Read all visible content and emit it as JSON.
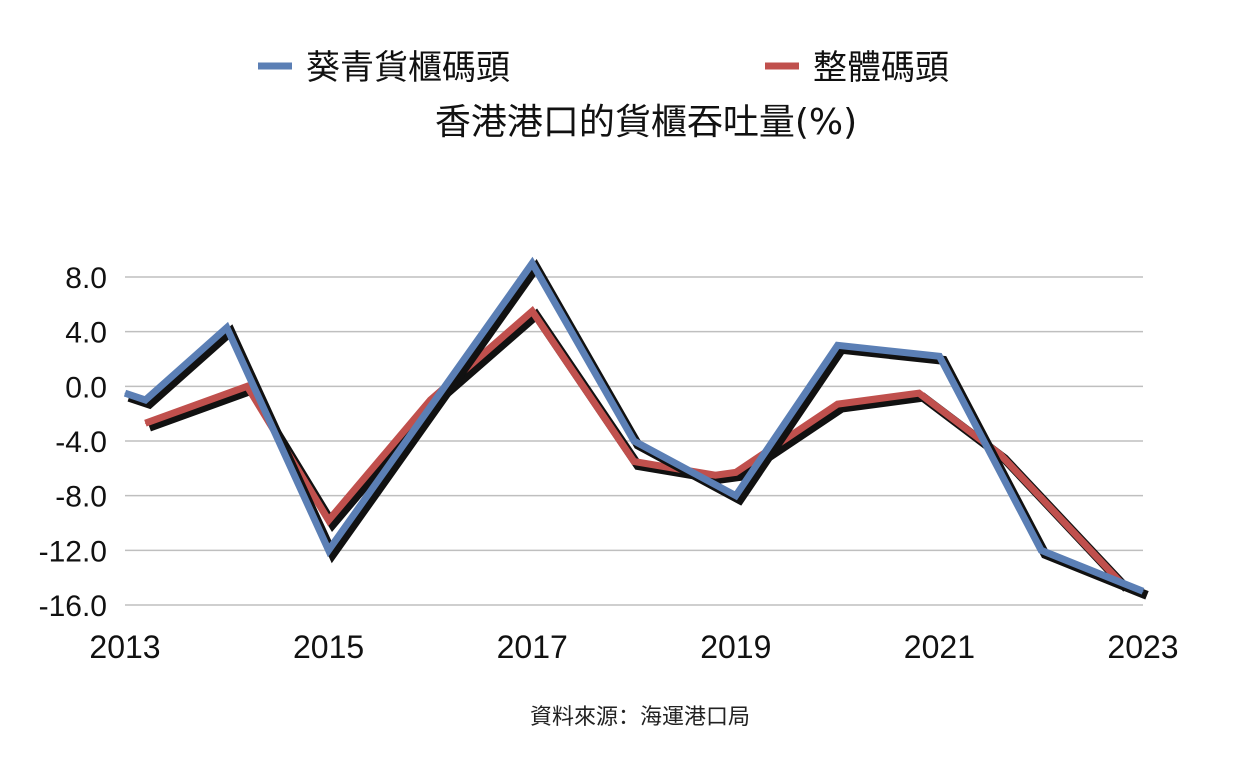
{
  "chart_data": {
    "type": "line",
    "title": "香港港口的貨櫃吞吐量(%)",
    "source": "資料來源：海運港口局",
    "x": [
      2013.0,
      2013.2,
      2014.0,
      2014.2,
      2015.0,
      2016.0,
      2017.0,
      2018.0,
      2018.8,
      2019.0,
      2020.0,
      2020.8,
      2021.0,
      2021.6,
      2022.0,
      2022.8,
      2023.0
    ],
    "x_ticks": [
      "2013",
      "2015",
      "2017",
      "2019",
      "2021",
      "2023"
    ],
    "y_ticks": [
      "8.0",
      "4.0",
      "0.0",
      "-4.0",
      "-8.0",
      "-12.0",
      "-16.0"
    ],
    "ylim": [
      -16,
      8
    ],
    "grid": true,
    "legend_position": "top",
    "series": [
      {
        "name": "葵青貨櫃碼頭",
        "color": "#5b7fb5",
        "points": [
          [
            2013.0,
            -0.5
          ],
          [
            2013.2,
            -1.0
          ],
          [
            2014.0,
            4.3
          ],
          [
            2015.0,
            -12.0
          ],
          [
            2016.0,
            -1.5
          ],
          [
            2017.0,
            9.0
          ],
          [
            2018.0,
            -4.0
          ],
          [
            2019.0,
            -8.0
          ],
          [
            2020.0,
            3.0
          ],
          [
            2021.0,
            2.2
          ],
          [
            2022.0,
            -12.0
          ],
          [
            2023.0,
            -15.0
          ]
        ]
      },
      {
        "name": "整體碼頭",
        "color": "#c0504d",
        "points": [
          [
            2013.2,
            -2.7
          ],
          [
            2014.2,
            0.0
          ],
          [
            2015.0,
            -9.8
          ],
          [
            2016.0,
            -1.0
          ],
          [
            2017.0,
            5.5
          ],
          [
            2018.0,
            -5.5
          ],
          [
            2018.8,
            -6.5
          ],
          [
            2019.0,
            -6.3
          ],
          [
            2020.0,
            -1.3
          ],
          [
            2020.8,
            -0.5
          ],
          [
            2021.6,
            -5.0
          ],
          [
            2022.8,
            -14.5
          ]
        ]
      }
    ]
  }
}
